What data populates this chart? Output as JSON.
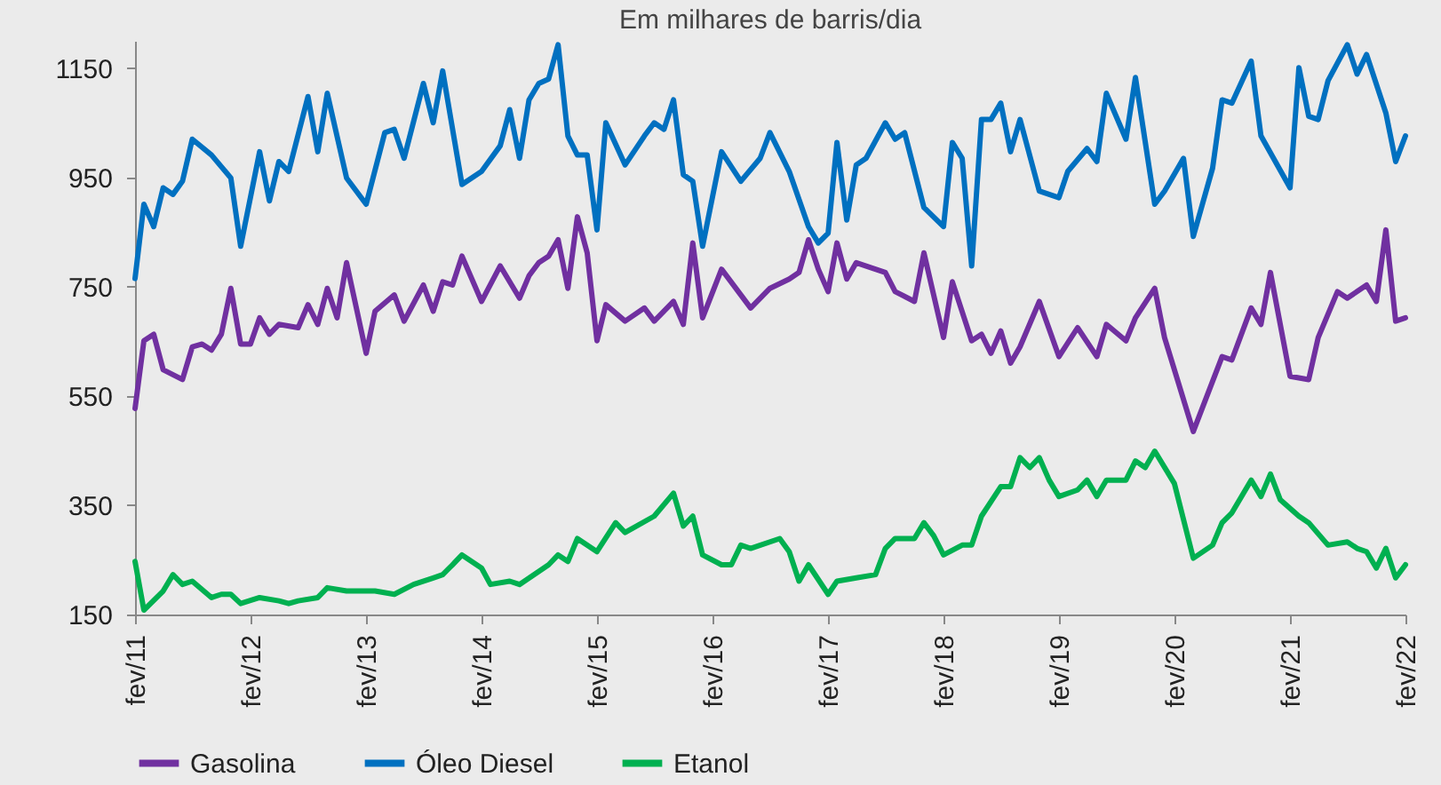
{
  "chart_data": {
    "type": "line",
    "title": "Em milhares de barris/dia",
    "xlim": [
      "2011-02",
      "2022-02"
    ],
    "xticks": [
      {
        "value": "2011-02",
        "label": "fev/11"
      },
      {
        "value": "2012-02",
        "label": "fev/12"
      },
      {
        "value": "2013-02",
        "label": "fev/13"
      },
      {
        "value": "2014-02",
        "label": "fev/14"
      },
      {
        "value": "2015-02",
        "label": "fev/15"
      },
      {
        "value": "2016-02",
        "label": "fev/16"
      },
      {
        "value": "2017-02",
        "label": "fev/17"
      },
      {
        "value": "2018-02",
        "label": "fev/18"
      },
      {
        "value": "2019-02",
        "label": "fev/19"
      },
      {
        "value": "2020-02",
        "label": "fev/20"
      },
      {
        "value": "2021-02",
        "label": "fev/21"
      },
      {
        "value": "2022-02",
        "label": "fev/22"
      }
    ],
    "ylim": [
      150,
      1200
    ],
    "yticks": [
      150,
      350,
      550,
      750,
      950,
      1150
    ],
    "grid": false,
    "legend": "bottom",
    "line_style": "solid",
    "marker": "none",
    "series": [
      {
        "name": "Gasolina",
        "color": "#7030a0",
        "x": [
          "2011-02",
          "2011-03",
          "2011-04",
          "2011-05",
          "2011-07",
          "2011-08",
          "2011-09",
          "2011-10",
          "2011-11",
          "2011-12",
          "2012-01",
          "2012-02",
          "2012-03",
          "2012-04",
          "2012-05",
          "2012-07",
          "2012-08",
          "2012-09",
          "2012-10",
          "2012-11",
          "2012-12",
          "2013-02",
          "2013-03",
          "2013-05",
          "2013-06",
          "2013-08",
          "2013-09",
          "2013-10",
          "2013-11",
          "2013-12",
          "2014-02",
          "2014-04",
          "2014-06",
          "2014-07",
          "2014-08",
          "2014-09",
          "2014-10",
          "2014-11",
          "2014-12",
          "2015-01",
          "2015-02",
          "2015-03",
          "2015-05",
          "2015-07",
          "2015-08",
          "2015-10",
          "2015-11",
          "2015-12",
          "2016-01",
          "2016-03",
          "2016-06",
          "2016-08",
          "2016-10",
          "2016-11",
          "2016-12",
          "2017-01",
          "2017-02",
          "2017-03",
          "2017-04",
          "2017-05",
          "2017-08",
          "2017-09",
          "2017-11",
          "2017-12",
          "2018-02",
          "2018-03",
          "2018-05",
          "2018-06",
          "2018-07",
          "2018-08",
          "2018-09",
          "2018-10",
          "2018-12",
          "2019-02",
          "2019-04",
          "2019-06",
          "2019-07",
          "2019-09",
          "2019-10",
          "2019-12",
          "2020-01",
          "2020-04",
          "2020-07",
          "2020-08",
          "2020-10",
          "2020-11",
          "2020-12",
          "2021-02",
          "2021-04",
          "2021-05",
          "2021-07",
          "2021-08",
          "2021-10",
          "2021-11",
          "2021-12",
          "2022-01",
          "2022-02"
        ],
        "values": [
          527,
          651,
          663,
          598,
          580,
          640,
          645,
          634,
          663,
          747,
          645,
          645,
          693,
          663,
          681,
          675,
          717,
          681,
          747,
          693,
          794,
          628,
          705,
          735,
          687,
          753,
          705,
          759,
          753,
          806,
          723,
          788,
          729,
          770,
          794,
          806,
          836,
          747,
          878,
          812,
          651,
          717,
          687,
          711,
          687,
          723,
          681,
          830,
          693,
          782,
          711,
          747,
          764,
          776,
          836,
          782,
          741,
          830,
          764,
          794,
          776,
          741,
          723,
          812,
          657,
          759,
          651,
          663,
          628,
          669,
          610,
          640,
          723,
          622,
          675,
          622,
          681,
          651,
          693,
          747,
          657,
          485,
          622,
          616,
          711,
          681,
          776,
          586,
          580,
          657,
          741,
          729,
          753,
          723,
          854,
          687,
          693
        ]
      },
      {
        "name": "Óleo Diesel",
        "color": "#0070c0",
        "x": [
          "2011-02",
          "2011-03",
          "2011-04",
          "2011-05",
          "2011-06",
          "2011-07",
          "2011-08",
          "2011-10",
          "2011-12",
          "2012-01",
          "2012-03",
          "2012-04",
          "2012-05",
          "2012-06",
          "2012-08",
          "2012-09",
          "2012-10",
          "2012-12",
          "2013-02",
          "2013-04",
          "2013-05",
          "2013-06",
          "2013-08",
          "2013-09",
          "2013-10",
          "2013-12",
          "2014-02",
          "2014-04",
          "2014-05",
          "2014-06",
          "2014-07",
          "2014-08",
          "2014-09",
          "2014-10",
          "2014-11",
          "2014-12",
          "2015-01",
          "2015-02",
          "2015-03",
          "2015-05",
          "2015-07",
          "2015-08",
          "2015-09",
          "2015-10",
          "2015-11",
          "2015-12",
          "2016-01",
          "2016-03",
          "2016-05",
          "2016-07",
          "2016-08",
          "2016-10",
          "2016-12",
          "2017-01",
          "2017-02",
          "2017-03",
          "2017-04",
          "2017-05",
          "2017-06",
          "2017-08",
          "2017-09",
          "2017-10",
          "2017-12",
          "2018-02",
          "2018-03",
          "2018-04",
          "2018-05",
          "2018-06",
          "2018-07",
          "2018-08",
          "2018-09",
          "2018-10",
          "2018-12",
          "2019-02",
          "2019-03",
          "2019-05",
          "2019-06",
          "2019-07",
          "2019-09",
          "2019-10",
          "2019-12",
          "2020-01",
          "2020-03",
          "2020-04",
          "2020-06",
          "2020-07",
          "2020-08",
          "2020-10",
          "2020-11",
          "2021-02",
          "2021-03",
          "2021-04",
          "2021-05",
          "2021-06",
          "2021-08",
          "2021-09",
          "2021-10",
          "2021-12",
          "2022-01",
          "2022-02"
        ],
        "values": [
          765,
          901,
          860,
          931,
          919,
          943,
          1020,
          991,
          949,
          824,
          997,
          907,
          979,
          961,
          1098,
          997,
          1104,
          949,
          901,
          1032,
          1038,
          985,
          1122,
          1050,
          1145,
          937,
          961,
          1008,
          1074,
          985,
          1092,
          1122,
          1130,
          1193,
          1026,
          991,
          991,
          854,
          1050,
          973,
          1026,
          1050,
          1038,
          1092,
          955,
          943,
          824,
          997,
          943,
          985,
          1032,
          961,
          860,
          830,
          848,
          1014,
          872,
          973,
          985,
          1050,
          1020,
          1032,
          895,
          860,
          1014,
          985,
          788,
          1056,
          1056,
          1086,
          997,
          1056,
          925,
          913,
          961,
          1003,
          979,
          1104,
          1020,
          1133,
          901,
          925,
          985,
          842,
          967,
          1092,
          1086,
          1163,
          1026,
          931,
          1151,
          1062,
          1056,
          1127,
          1193,
          1139,
          1175,
          1068,
          979,
          1026
        ]
      },
      {
        "name": "Etanol",
        "color": "#00b050",
        "x": [
          "2011-02",
          "2011-03",
          "2011-05",
          "2011-06",
          "2011-07",
          "2011-08",
          "2011-10",
          "2011-11",
          "2011-12",
          "2012-01",
          "2012-03",
          "2012-05",
          "2012-06",
          "2012-07",
          "2012-09",
          "2012-10",
          "2012-12",
          "2013-03",
          "2013-05",
          "2013-07",
          "2013-09",
          "2013-10",
          "2013-11",
          "2013-12",
          "2014-02",
          "2014-03",
          "2014-05",
          "2014-06",
          "2014-08",
          "2014-09",
          "2014-10",
          "2014-11",
          "2014-12",
          "2015-02",
          "2015-04",
          "2015-05",
          "2015-08",
          "2015-10",
          "2015-11",
          "2015-12",
          "2016-01",
          "2016-03",
          "2016-04",
          "2016-05",
          "2016-06",
          "2016-09",
          "2016-10",
          "2016-11",
          "2016-12",
          "2017-02",
          "2017-03",
          "2017-05",
          "2017-07",
          "2017-08",
          "2017-09",
          "2017-11",
          "2017-12",
          "2018-01",
          "2018-02",
          "2018-04",
          "2018-05",
          "2018-06",
          "2018-08",
          "2018-09",
          "2018-10",
          "2018-11",
          "2018-12",
          "2019-01",
          "2019-02",
          "2019-04",
          "2019-05",
          "2019-06",
          "2019-07",
          "2019-09",
          "2019-10",
          "2019-11",
          "2019-12",
          "2020-02",
          "2020-04",
          "2020-06",
          "2020-07",
          "2020-08",
          "2020-10",
          "2020-11",
          "2020-12",
          "2021-01",
          "2021-03",
          "2021-04",
          "2021-06",
          "2021-08",
          "2021-09",
          "2021-10",
          "2021-11",
          "2021-12",
          "2022-01",
          "2022-02"
        ],
        "values": [
          247,
          158,
          193,
          223,
          205,
          211,
          181,
          187,
          187,
          170,
          181,
          175,
          170,
          175,
          181,
          199,
          193,
          193,
          187,
          205,
          217,
          223,
          241,
          259,
          235,
          205,
          211,
          205,
          229,
          241,
          259,
          247,
          289,
          265,
          318,
          300,
          330,
          372,
          312,
          330,
          259,
          241,
          241,
          277,
          271,
          289,
          265,
          211,
          241,
          187,
          211,
          217,
          223,
          271,
          289,
          289,
          318,
          294,
          259,
          277,
          277,
          330,
          384,
          384,
          437,
          419,
          437,
          396,
          366,
          378,
          396,
          366,
          396,
          396,
          431,
          419,
          449,
          390,
          253,
          277,
          318,
          336,
          396,
          366,
          407,
          360,
          330,
          318,
          277,
          283,
          271,
          265,
          235,
          271,
          217,
          241
        ]
      }
    ]
  }
}
